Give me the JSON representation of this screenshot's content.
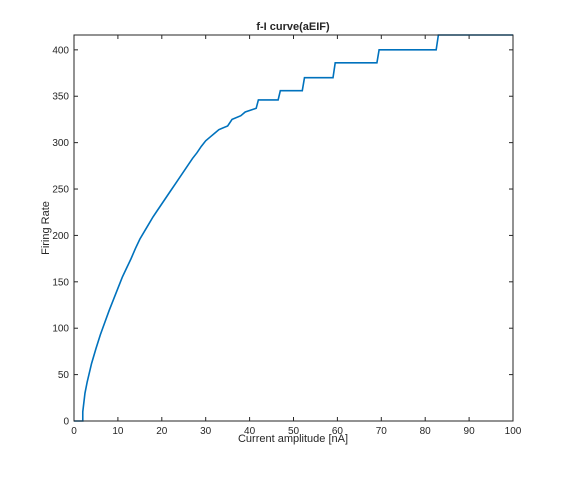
{
  "chart_data": {
    "type": "line",
    "title": "f-I curve(aEIF)",
    "xlabel": "Current amplitude [nA]",
    "ylabel": "Firing Rate",
    "xlim": [
      0,
      100
    ],
    "ylim": [
      0,
      416
    ],
    "xticks": [
      0,
      10,
      20,
      30,
      40,
      50,
      60,
      70,
      80,
      90,
      100
    ],
    "yticks": [
      0,
      50,
      100,
      150,
      200,
      250,
      300,
      350,
      400
    ],
    "grid": false,
    "legend": "none",
    "line_color": "#0072bd",
    "series": [
      {
        "x": [
          0,
          2,
          2,
          2.5,
          3,
          4,
          5,
          6,
          7,
          8,
          9,
          10,
          11,
          12,
          13,
          14,
          15,
          16,
          17,
          18,
          19,
          20,
          21,
          22,
          23,
          24,
          25,
          26,
          27,
          28,
          29,
          30,
          31,
          32,
          33,
          35,
          36,
          38,
          39,
          41.5,
          42,
          46.5,
          47,
          52,
          52.5,
          59,
          59.5,
          69,
          69.5,
          82.5,
          83,
          100
        ],
        "y": [
          0,
          0,
          10,
          30,
          42,
          62,
          78,
          93,
          106,
          119,
          131,
          143,
          155,
          165,
          175,
          186,
          196,
          204,
          212,
          220,
          227,
          234,
          241,
          248,
          255,
          262,
          269,
          276,
          283,
          289,
          296,
          302,
          306,
          310,
          314,
          318,
          325,
          329,
          333,
          337,
          346,
          346,
          356,
          356,
          370,
          370,
          386,
          386,
          400,
          400,
          416,
          416
        ]
      }
    ]
  }
}
